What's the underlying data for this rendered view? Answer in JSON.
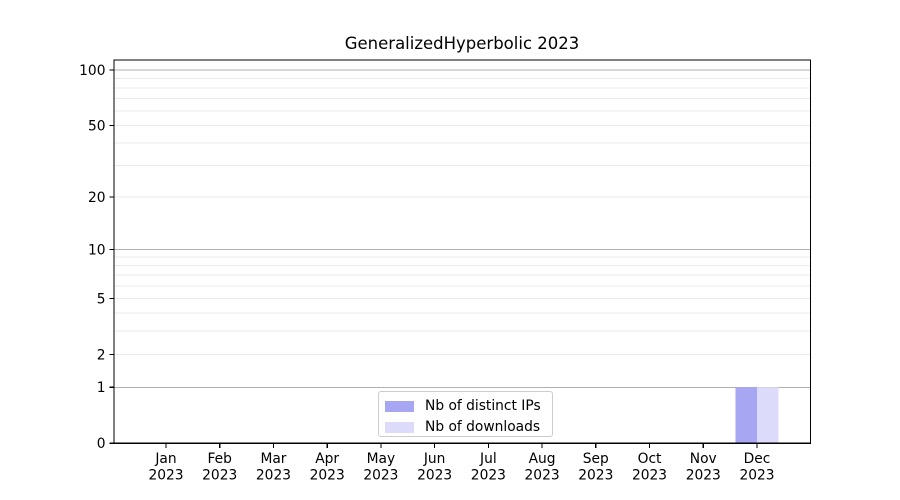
{
  "chart_data": {
    "type": "bar",
    "title": "GeneralizedHyperbolic 2023",
    "categories": [
      "Jan",
      "Feb",
      "Mar",
      "Apr",
      "May",
      "Jun",
      "Jul",
      "Aug",
      "Sep",
      "Oct",
      "Nov",
      "Dec"
    ],
    "x_tick_labels": [
      [
        "Jan",
        "2023"
      ],
      [
        "Feb",
        "2023"
      ],
      [
        "Mar",
        "2023"
      ],
      [
        "Apr",
        "2023"
      ],
      [
        "May",
        "2023"
      ],
      [
        "Jun",
        "2023"
      ],
      [
        "Jul",
        "2023"
      ],
      [
        "Aug",
        "2023"
      ],
      [
        "Sep",
        "2023"
      ],
      [
        "Oct",
        "2023"
      ],
      [
        "Nov",
        "2023"
      ],
      [
        "Dec",
        "2023"
      ]
    ],
    "series": [
      {
        "name": "Nb of distinct IPs",
        "color": "#a6a6f3",
        "values": [
          0,
          0,
          0,
          0,
          0,
          0,
          0,
          0,
          0,
          0,
          0,
          1
        ]
      },
      {
        "name": "Nb of downloads",
        "color": "#dcdcfa",
        "values": [
          0,
          0,
          0,
          0,
          0,
          0,
          0,
          0,
          0,
          0,
          0,
          1
        ]
      }
    ],
    "xlabel": "",
    "ylabel": "",
    "y_ticks": [
      0,
      1,
      2,
      5,
      10,
      20,
      50,
      100
    ],
    "y_scale": "log10(1+v)",
    "ylim": [
      0,
      113.5
    ],
    "grid": {
      "major": [
        1,
        10,
        100
      ],
      "minor": [
        2,
        3,
        4,
        5,
        6,
        7,
        8,
        9,
        20,
        30,
        40,
        50,
        60,
        70,
        80,
        90
      ]
    },
    "legend": {
      "position": "lower-center"
    },
    "colors": {
      "grid_major": "#b0b0b0",
      "grid_minor": "#ebebeb",
      "spine": "#000000",
      "text": "#000000"
    }
  }
}
